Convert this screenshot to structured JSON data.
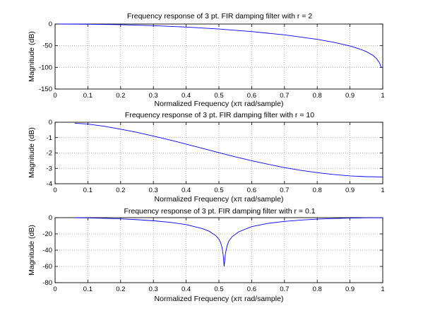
{
  "chart_data": [
    {
      "type": "line",
      "title": "Frequency response of 3 pt. FIR damping filter with r = 2",
      "xlabel": "Normalized Frequency  (xπ rad/sample)",
      "ylabel": "Magnitude (dB)",
      "xlim": [
        0,
        1
      ],
      "ylim": [
        -150,
        0
      ],
      "xticks": [
        0,
        0.1,
        0.2,
        0.3,
        0.4,
        0.5,
        0.6,
        0.7,
        0.8,
        0.9,
        1
      ],
      "yticks": [
        -150,
        -100,
        -50,
        0
      ],
      "grid": true,
      "series": [
        {
          "color": "#0000ff",
          "x": [
            0.01,
            0.1,
            0.2,
            0.3,
            0.4,
            0.5,
            0.6,
            0.7,
            0.8,
            0.85,
            0.9,
            0.93,
            0.95,
            0.97,
            0.98,
            0.99,
            0.995,
            1.0
          ],
          "y": [
            0,
            -0.4,
            -1.6,
            -3.8,
            -7.0,
            -11.6,
            -17.4,
            -25.0,
            -35.3,
            -42.0,
            -50.7,
            -57.7,
            -63.7,
            -72.4,
            -79.0,
            -89.3,
            -100.0,
            -100.0
          ]
        }
      ]
    },
    {
      "type": "line",
      "title": "Frequency response of 3 pt. FIR damping filter with r = 10",
      "xlabel": "Normalized Frequency  (xπ rad/sample)",
      "ylabel": "Magnitude (dB)",
      "xlim": [
        0,
        1
      ],
      "ylim": [
        -4,
        0
      ],
      "xticks": [
        0,
        0.1,
        0.2,
        0.3,
        0.4,
        0.5,
        0.6,
        0.7,
        0.8,
        0.9,
        1
      ],
      "yticks": [
        -4,
        -3,
        -2,
        -1,
        0
      ],
      "grid": true,
      "series": [
        {
          "color": "#0000ff",
          "x": [
            0.06,
            0.1,
            0.15,
            0.2,
            0.25,
            0.3,
            0.35,
            0.4,
            0.45,
            0.5,
            0.55,
            0.6,
            0.65,
            0.7,
            0.75,
            0.8,
            0.85,
            0.9,
            0.95,
            1.0
          ],
          "y": [
            -0.06,
            -0.12,
            -0.26,
            -0.45,
            -0.66,
            -0.9,
            -1.15,
            -1.42,
            -1.7,
            -1.98,
            -2.25,
            -2.5,
            -2.73,
            -2.95,
            -3.13,
            -3.28,
            -3.4,
            -3.49,
            -3.54,
            -3.56
          ]
        }
      ]
    },
    {
      "type": "line",
      "title": "Frequency response of 3 pt. FIR damping filter with r = 0.1",
      "xlabel": "Normalized Frequency  (xπ rad/sample)",
      "ylabel": "Magnitude (dB)",
      "xlim": [
        0,
        1
      ],
      "ylim": [
        -80,
        0
      ],
      "xticks": [
        0,
        0.1,
        0.2,
        0.3,
        0.4,
        0.5,
        0.6,
        0.7,
        0.8,
        0.9,
        1
      ],
      "yticks": [
        -80,
        -60,
        -40,
        -20,
        0
      ],
      "grid": true,
      "series": [
        {
          "color": "#0000ff",
          "x": [
            0.06,
            0.1,
            0.15,
            0.2,
            0.25,
            0.3,
            0.35,
            0.4,
            0.45,
            0.47,
            0.49,
            0.5,
            0.505,
            0.51,
            0.513,
            0.516,
            0.52,
            0.525,
            0.53,
            0.54,
            0.56,
            0.6,
            0.65,
            0.7,
            0.75,
            0.8,
            0.85,
            0.9,
            0.95,
            1.0
          ],
          "y": [
            -0.1,
            -0.3,
            -0.8,
            -1.5,
            -2.5,
            -3.8,
            -5.7,
            -8.5,
            -13.5,
            -16.7,
            -22.0,
            -26.5,
            -30.5,
            -37.5,
            -46.0,
            -60.0,
            -44.0,
            -34.5,
            -29.0,
            -23.5,
            -17.5,
            -11.0,
            -7.0,
            -4.6,
            -3.0,
            -1.8,
            -1.0,
            -0.5,
            -0.2,
            -0.1
          ]
        }
      ]
    }
  ]
}
